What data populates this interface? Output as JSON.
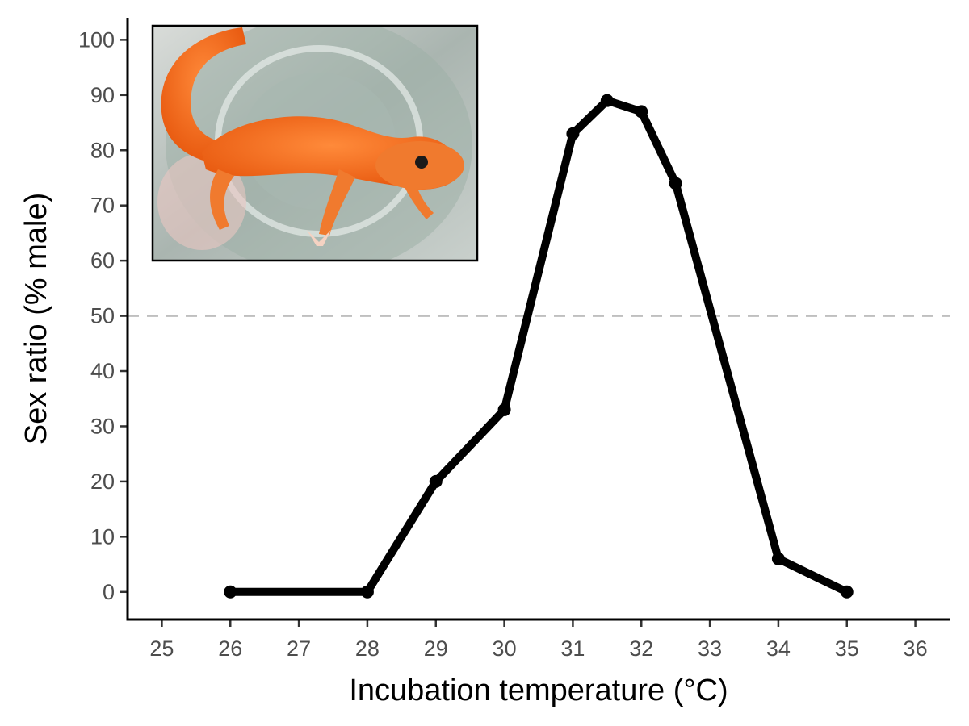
{
  "chart_data": {
    "type": "line",
    "title": "",
    "xlabel": "Incubation temperature (°C)",
    "ylabel": "Sex ratio (% male)",
    "xlim": [
      24.5,
      36.5
    ],
    "ylim": [
      -5,
      104
    ],
    "x_ticks": [
      25,
      26,
      27,
      28,
      29,
      30,
      31,
      32,
      33,
      34,
      35,
      36
    ],
    "y_ticks": [
      0,
      10,
      20,
      30,
      40,
      50,
      60,
      70,
      80,
      90,
      100
    ],
    "reference_line": {
      "y": 50,
      "style": "dashed",
      "color": "#bfbfbf"
    },
    "grid": false,
    "legend": "none",
    "series": [
      {
        "x": [
          26,
          28,
          29,
          30,
          31,
          31.5,
          32,
          32.5,
          34,
          35
        ],
        "values": [
          0,
          0,
          20,
          33,
          83,
          89,
          87,
          74,
          6,
          0
        ],
        "color": "#000000"
      }
    ],
    "inset_image": {
      "description_icon": "leopard-gecko-photo",
      "colors": {
        "body": "#f26a1b",
        "background": "#b8c2bd"
      }
    }
  }
}
